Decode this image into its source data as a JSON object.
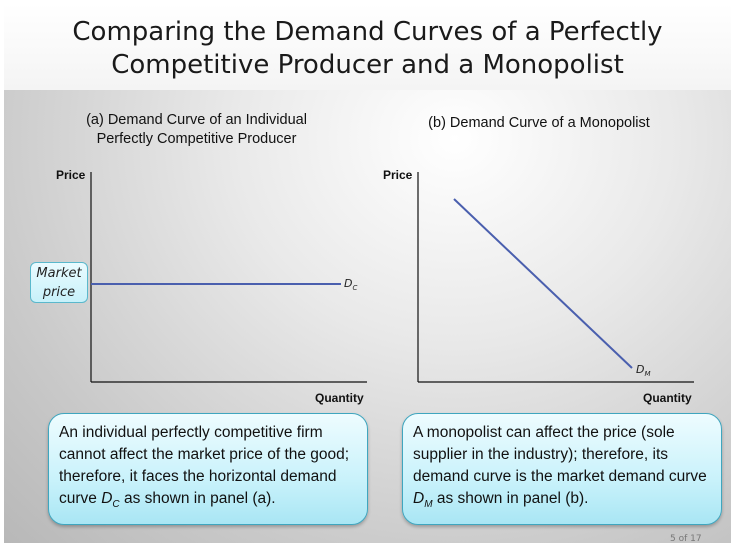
{
  "slide": {
    "title": "Comparing the Demand Curves of a Perfectly\nCompetitive Producer and a Monopolist",
    "page_number": "5 of 17"
  },
  "panel_a": {
    "title": "(a) Demand Curve of an Individual\nPerfectly Competitive Producer",
    "y_axis_label": "Price",
    "x_axis_label": "Quantity",
    "curve_label_main": "D",
    "curve_label_sub": "C",
    "market_price_label": "Market\nprice",
    "curve_color": "#4a5fae"
  },
  "panel_b": {
    "title": "(b) Demand Curve of a Monopolist",
    "y_axis_label": "Price",
    "x_axis_label": "Quantity",
    "curve_label_main": "D",
    "curve_label_sub": "M",
    "curve_color": "#4a5fae"
  },
  "notes": {
    "a_before": "An individual perfectly competitive firm cannot affect the market price of the good; therefore, it faces the horizontal demand curve ",
    "a_curve_main": "D",
    "a_curve_sub": "C",
    "a_after": " as shown in panel (a).",
    "b_before": "A monopolist can affect the price (sole supplier in the industry); therefore, its demand curve is the market demand curve ",
    "b_curve_main": "D",
    "b_curve_sub": "M",
    "b_after": " as shown in panel (b)."
  }
}
